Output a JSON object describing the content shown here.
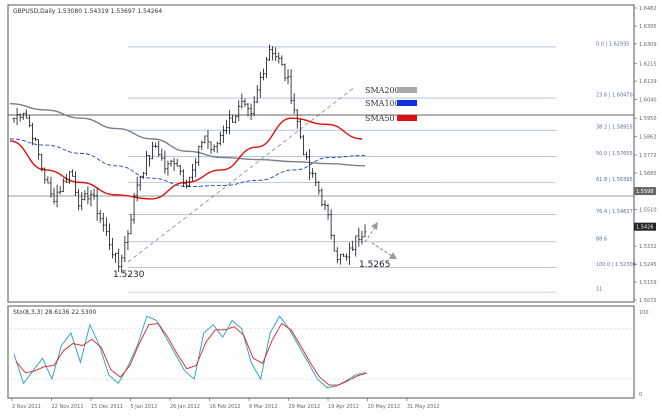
{
  "window": {
    "main_title": "GBPUSD,Daily 1.53080 1.54319 1.53697 1.54264",
    "osc_title": "Sto(8,3,3) 28.6136 22.5300"
  },
  "axis": {
    "price_ticks": [
      "1.6482",
      "1.6395",
      "1.6309",
      "1.6215",
      "1.6129",
      "1.6040",
      "1.5950",
      "1.5862",
      "1.5772",
      "1.5685",
      "1.5598",
      "1.5510",
      "1.5424",
      "1.5332",
      "1.5245",
      "1.5159",
      "1.5072"
    ],
    "current_price_tag": "1.5426",
    "ma_tag": "1.5598",
    "osc_ticks": [
      "100",
      "0"
    ],
    "date_ticks": [
      "2 Nov 2011",
      "22 Nov 2011",
      "15 Dec 2011",
      "5 Jan 2012",
      "26 Jan 2012",
      "16 Feb 2012",
      "8 Mar 2012",
      "29 Mar 2012",
      "19 Apr 2012",
      "10 May 2012",
      "31 May 2012"
    ]
  },
  "fibonacci": [
    {
      "label": "0.0 | 1.62935",
      "price": 1.6294
    },
    {
      "label": "23.6 | 1.60470",
      "price": 1.6047
    },
    {
      "label": "38.2 | 1.58915",
      "price": 1.5892
    },
    {
      "label": "50.0 | 1.57655",
      "price": 1.5766
    },
    {
      "label": "61.8 | 1.56395",
      "price": 1.564
    },
    {
      "label": "76.4 | 1.54837",
      "price": 1.5484
    },
    {
      "label": "88.6",
      "price": 1.5353
    },
    {
      "label": "100.0 | 1.52300",
      "price": 1.523
    },
    {
      "label": "11",
      "price": 1.511
    }
  ],
  "annotations": {
    "low1": "1.5230",
    "low2": "1.5265"
  },
  "legend": [
    {
      "name": "SMA200",
      "color": "#aaaaaa"
    },
    {
      "name": "SMA100",
      "color": "#1030e0"
    },
    {
      "name": "SMA50",
      "color": "#e01010"
    }
  ],
  "chart_data": {
    "type": "line",
    "symbol": "GBPUSD",
    "timeframe": "Daily",
    "ylim": [
      1.5072,
      1.6482
    ],
    "x": [
      "2 Nov 2011",
      "22 Nov 2011",
      "15 Dec 2011",
      "5 Jan 2012",
      "26 Jan 2012",
      "16 Feb 2012",
      "8 Mar 2012",
      "29 Mar 2012",
      "19 Apr 2012",
      "10 May 2012",
      "31 May 2012"
    ],
    "series": [
      {
        "name": "SMA200",
        "values": [
          1.602,
          1.599,
          1.595,
          1.59,
          1.585,
          1.579,
          1.576,
          1.575,
          1.574,
          1.573,
          1.572
        ]
      },
      {
        "name": "SMA100",
        "values": [
          1.585,
          1.582,
          1.578,
          1.572,
          1.566,
          1.562,
          1.5625,
          1.565,
          1.57,
          1.576,
          1.577
        ]
      },
      {
        "name": "SMA50",
        "values": [
          1.584,
          1.57,
          1.564,
          1.558,
          1.556,
          1.564,
          1.57,
          1.581,
          1.595,
          1.592,
          1.585
        ]
      }
    ],
    "price_path": [
      1.595,
      1.599,
      1.587,
      1.57,
      1.556,
      1.562,
      1.57,
      1.552,
      1.56,
      1.548,
      1.536,
      1.523,
      1.54,
      1.564,
      1.575,
      1.582,
      1.57,
      1.576,
      1.564,
      1.57,
      1.588,
      1.578,
      1.59,
      1.595,
      1.601,
      1.595,
      1.615,
      1.63,
      1.622,
      1.611,
      1.59,
      1.57,
      1.562,
      1.548,
      1.529,
      1.5265,
      1.536,
      1.5426
    ],
    "stochastic": [
      50,
      15,
      30,
      45,
      20,
      60,
      75,
      40,
      85,
      60,
      25,
      15,
      35,
      60,
      95,
      90,
      70,
      50,
      30,
      20,
      75,
      85,
      70,
      90,
      80,
      40,
      20,
      75,
      95,
      80,
      60,
      40,
      20,
      10,
      12,
      18,
      25,
      28
    ],
    "osc_ylim": [
      0,
      100
    ]
  }
}
